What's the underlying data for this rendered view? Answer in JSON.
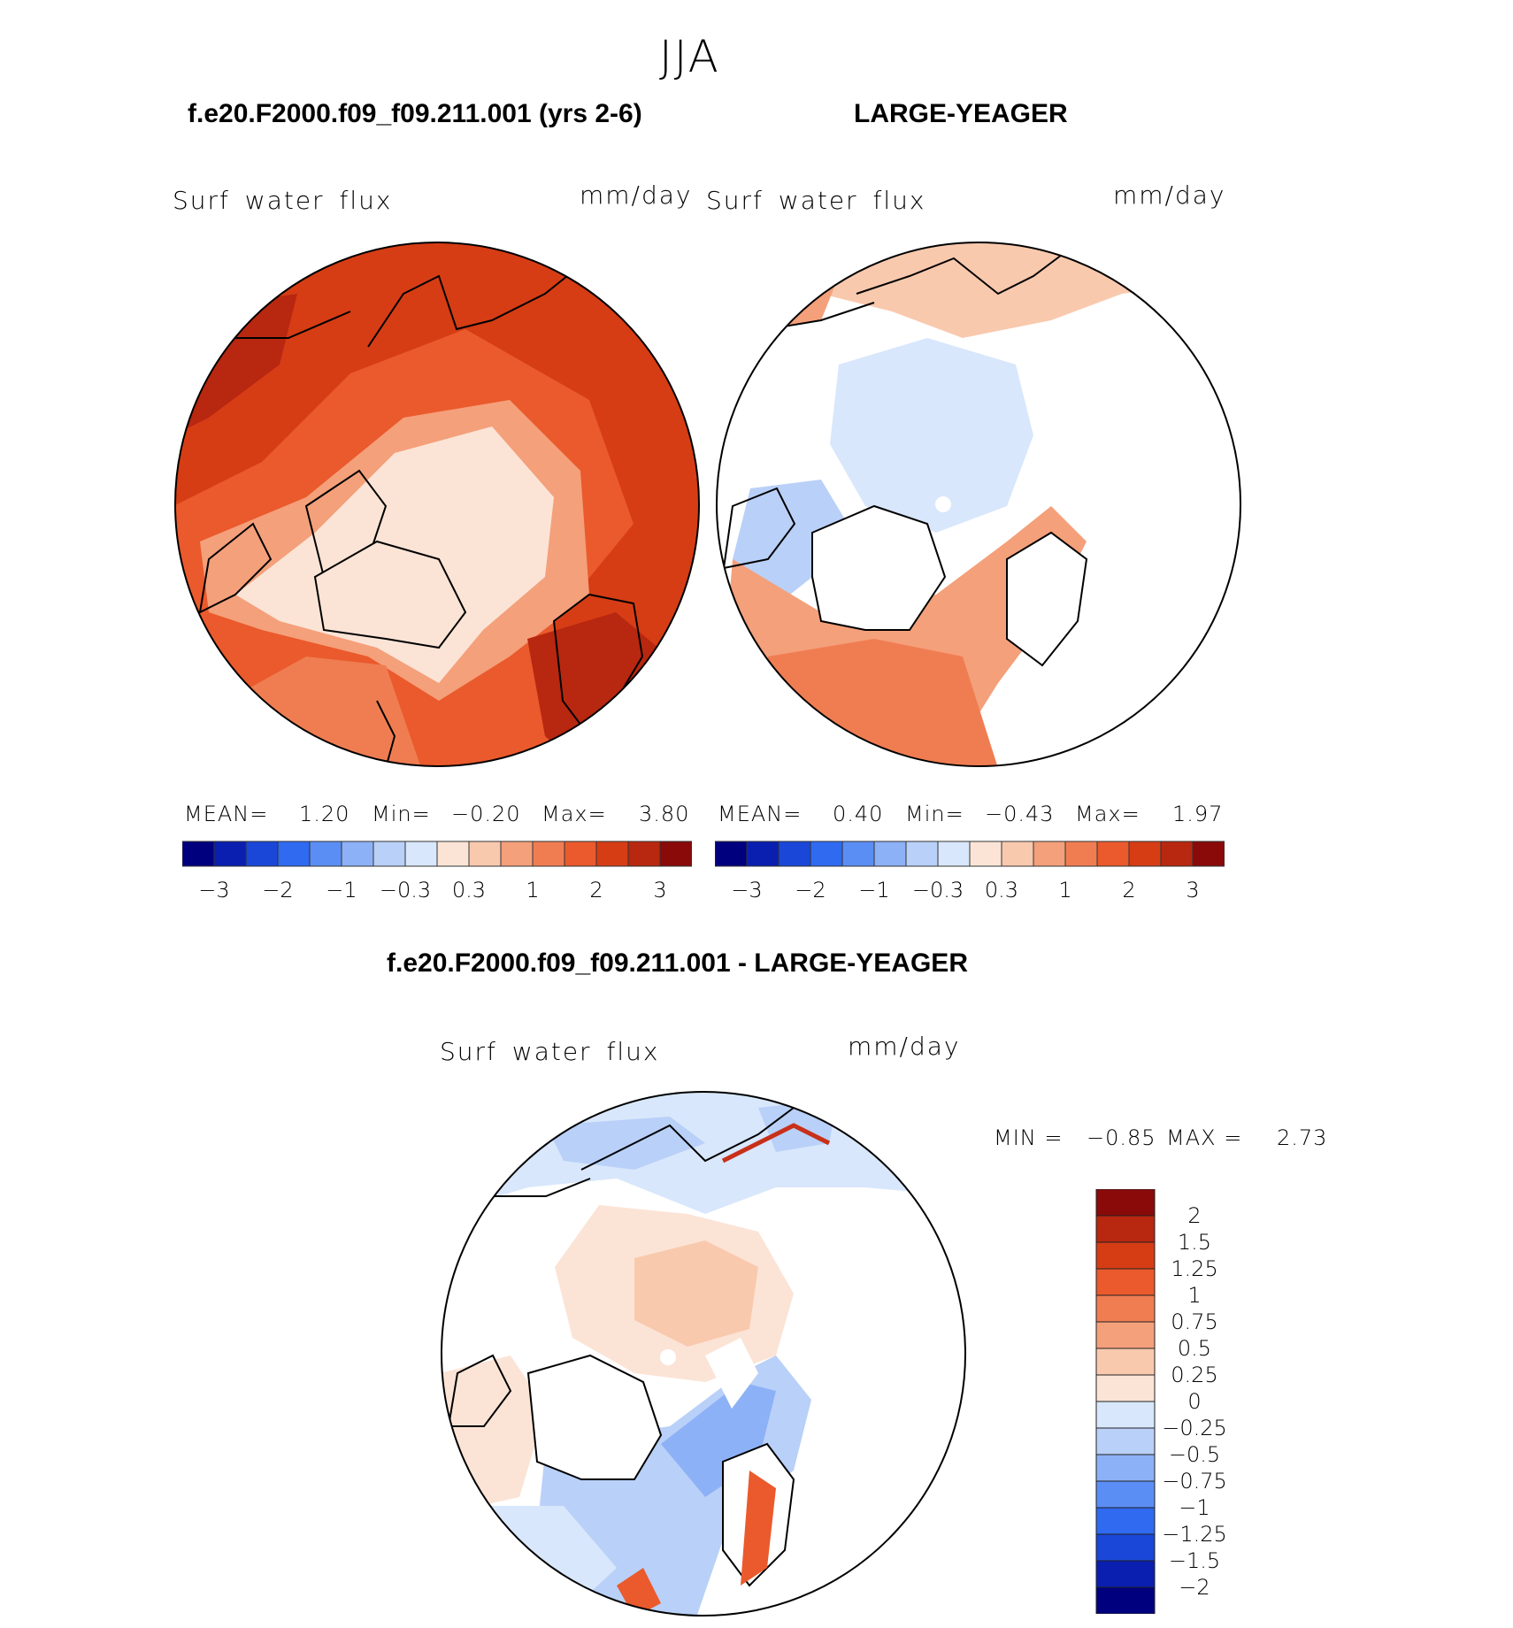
{
  "title": "JJA",
  "panels": {
    "p1": {
      "case": "f.e20.F2000.f09_f09.211.001 (yrs 2-6)",
      "var": "Surf water flux",
      "units": "mm/day",
      "mean_label": "MEAN=",
      "mean": "1.20",
      "min_label": "Min=",
      "min": "−0.20",
      "max_label": "Max=",
      "max": "3.80"
    },
    "p2": {
      "case": "LARGE-YEAGER",
      "var": "Surf water flux",
      "units": "mm/day",
      "mean_label": "MEAN=",
      "mean": "0.40",
      "min_label": "Min=",
      "min": "−0.43",
      "max_label": "Max=",
      "max": "1.97"
    },
    "diff": {
      "case": "f.e20.F2000.f09_f09.211.001 - LARGE-YEAGER",
      "var": "Surf water flux",
      "units": "mm/day",
      "min_label": "MIN =",
      "min": "−0.85",
      "max_label": "MAX =",
      "max": "2.73"
    }
  },
  "chart_data": [
    {
      "type": "heatmap",
      "title": "f.e20.F2000.f09_f09.211.001 (yrs 2-6)",
      "variable": "Surf water flux",
      "units": "mm/day",
      "projection": "north polar stereographic",
      "mean": 1.2,
      "min": -0.2,
      "max": 3.8,
      "colorbar_ticks": [
        "−3",
        "−2",
        "−1",
        "−0.3",
        "0.3",
        "1",
        "2",
        "3"
      ],
      "colorbar_colors": [
        "#00007f",
        "#0a1fb0",
        "#1a47d8",
        "#2f6af0",
        "#5b8ef4",
        "#8db1f6",
        "#b9d0f8",
        "#d8e7fb",
        "#fbe4d6",
        "#f9c9ae",
        "#f4a07b",
        "#f07d52",
        "#ea5a2c",
        "#d63d15",
        "#b82710",
        "#8a0a0a"
      ],
      "colorbar_placement": "bottom"
    },
    {
      "type": "heatmap",
      "title": "LARGE-YEAGER",
      "variable": "Surf water flux",
      "units": "mm/day",
      "projection": "north polar stereographic",
      "mean": 0.4,
      "min": -0.43,
      "max": 1.97,
      "colorbar_ticks": [
        "−3",
        "−2",
        "−1",
        "−0.3",
        "0.3",
        "1",
        "2",
        "3"
      ],
      "colorbar_colors": [
        "#00007f",
        "#0a1fb0",
        "#1a47d8",
        "#2f6af0",
        "#5b8ef4",
        "#8db1f6",
        "#b9d0f8",
        "#d8e7fb",
        "#fbe4d6",
        "#f9c9ae",
        "#f4a07b",
        "#f07d52",
        "#ea5a2c",
        "#d63d15",
        "#b82710",
        "#8a0a0a"
      ],
      "colorbar_placement": "bottom"
    },
    {
      "type": "heatmap",
      "title": "f.e20.F2000.f09_f09.211.001 - LARGE-YEAGER",
      "variable": "Surf water flux",
      "units": "mm/day",
      "projection": "north polar stereographic",
      "min": -0.85,
      "max": 2.73,
      "colorbar_ticks": [
        "2",
        "1.5",
        "1.25",
        "1",
        "0.75",
        "0.5",
        "0.25",
        "0",
        "−0.25",
        "−0.5",
        "−0.75",
        "−1",
        "−1.25",
        "−1.5",
        "−2"
      ],
      "colorbar_colors": [
        "#8a0a0a",
        "#b82710",
        "#d63d15",
        "#ea5a2c",
        "#f07d52",
        "#f4a07b",
        "#f9c9ae",
        "#fbe4d6",
        "#d8e7fb",
        "#b9d0f8",
        "#8db1f6",
        "#5b8ef4",
        "#2f6af0",
        "#1a47d8",
        "#0a1fb0",
        "#00007f"
      ],
      "colorbar_placement": "right"
    }
  ]
}
